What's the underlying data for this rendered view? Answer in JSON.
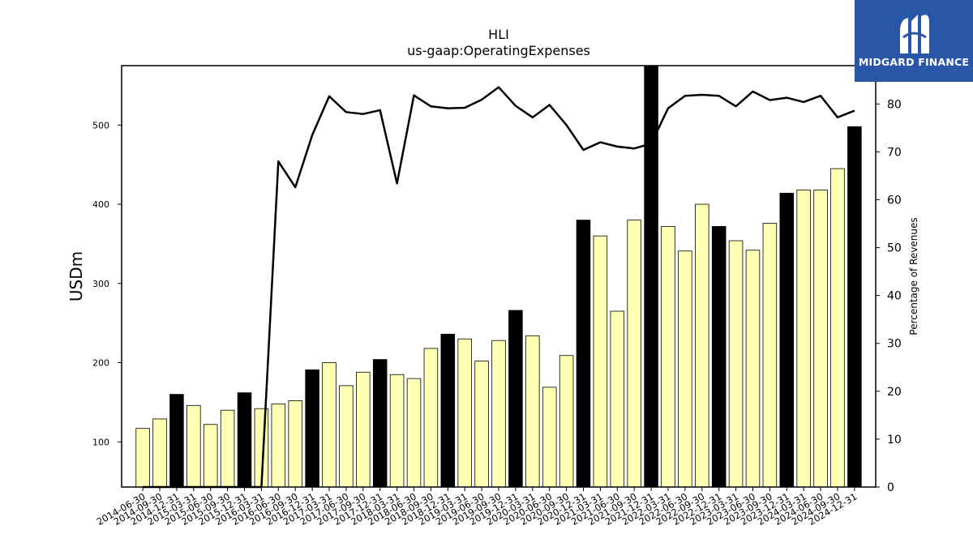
{
  "logo": {
    "text": "MIDGARD FINANCE"
  },
  "chart_data": {
    "type": "bar",
    "title": "HLI",
    "subtitle": "us-gaap:OperatingExpenses",
    "ylabel": "USDm",
    "y2label": "Percentage of Revenues",
    "ylim": [
      43,
      575
    ],
    "y2lim": [
      0,
      88
    ],
    "yticks": [
      100,
      200,
      300,
      400,
      500
    ],
    "y2ticks": [
      0,
      10,
      20,
      30,
      40,
      50,
      60,
      70,
      80
    ],
    "categories": [
      "2014-06-30",
      "2014-09-30",
      "2014-12-31",
      "2015-03-31",
      "2015-06-30",
      "2015-09-30",
      "2015-12-31",
      "2016-03-31",
      "2016-06-30",
      "2016-09-30",
      "2016-12-31",
      "2017-03-31",
      "2017-06-30",
      "2017-09-30",
      "2017-12-31",
      "2018-03-31",
      "2018-06-30",
      "2018-09-30",
      "2018-12-31",
      "2019-03-31",
      "2019-06-30",
      "2019-09-30",
      "2019-12-31",
      "2020-03-31",
      "2020-06-30",
      "2020-09-30",
      "2020-12-31",
      "2021-03-31",
      "2021-06-30",
      "2021-09-30",
      "2021-12-31",
      "2022-03-31",
      "2022-06-30",
      "2022-09-30",
      "2022-12-31",
      "2023-03-31",
      "2023-06-30",
      "2023-09-30",
      "2023-12-31",
      "2024-03-31",
      "2024-06-30",
      "2024-09-30",
      "2024-12-31"
    ],
    "bar_colors": {
      "quarter": "#ffffb3",
      "fiscal_year_end": "#000000"
    },
    "series": [
      {
        "type": "bar",
        "values": [
          117,
          129,
          160,
          146,
          122,
          140,
          162,
          142,
          148,
          152,
          191,
          200,
          171,
          188,
          204,
          185,
          180,
          218,
          236,
          230,
          202,
          228,
          266,
          234,
          169,
          209,
          380,
          360,
          265,
          380,
          578,
          372,
          341,
          400,
          372,
          354,
          342,
          376,
          414,
          418,
          418,
          445,
          498
        ],
        "highlight": [
          false,
          false,
          true,
          false,
          false,
          false,
          true,
          false,
          false,
          false,
          true,
          false,
          false,
          false,
          true,
          false,
          false,
          false,
          true,
          false,
          false,
          false,
          true,
          false,
          false,
          false,
          true,
          false,
          false,
          false,
          true,
          false,
          false,
          false,
          true,
          false,
          false,
          false,
          true,
          false,
          false,
          false,
          true
        ]
      },
      {
        "type": "line",
        "axis": "right",
        "values": [
          0,
          0,
          0,
          0,
          0,
          0,
          0,
          0,
          68,
          62.6,
          73.5,
          81.6,
          78.3,
          77.9,
          78.7,
          63.4,
          81.8,
          79.5,
          79.1,
          79.2,
          80.9,
          83.5,
          79.6,
          77.2,
          79.8,
          75.6,
          70.4,
          72,
          71.1,
          70.7,
          71.7,
          79.1,
          81.7,
          81.9,
          81.7,
          79.5,
          82.6,
          80.8,
          81.3,
          80.4,
          81.7,
          77.2,
          78.6
        ],
        "color": "#000000"
      }
    ]
  }
}
